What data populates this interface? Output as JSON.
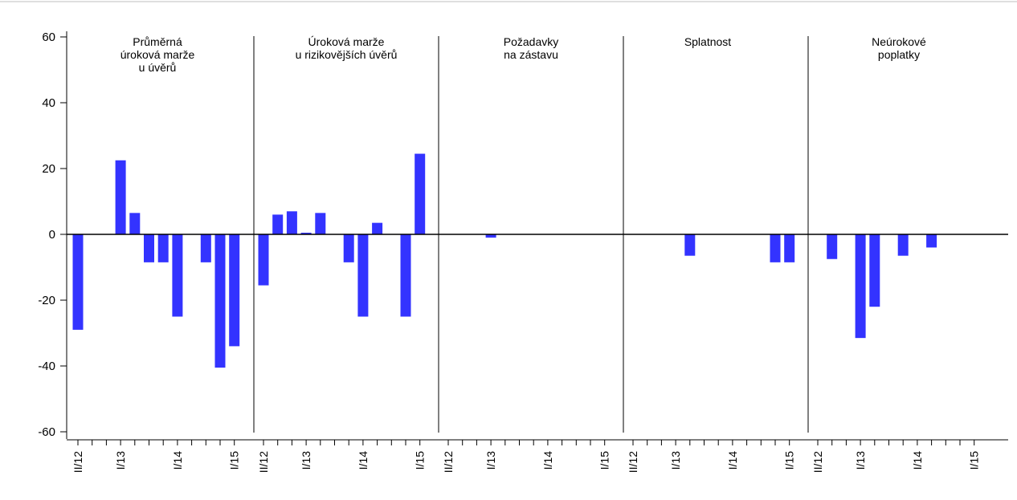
{
  "chart_data": {
    "type": "bar",
    "title": "",
    "ylim": [
      -60,
      60
    ],
    "yticks": [
      60,
      40,
      20,
      0,
      -20,
      -40,
      -60
    ],
    "ytick_labels": [
      "60",
      "40",
      "20",
      "0",
      "-20",
      "-40",
      "-60"
    ],
    "bar_color": "#3333ff",
    "x_tick_labels": [
      "II/12",
      "I/13",
      "I/14",
      "I/15"
    ],
    "panels": [
      {
        "title_lines": [
          "Průměrná",
          "úroková marže",
          "u úvěrů"
        ],
        "values": [
          -29,
          0,
          0,
          22.5,
          6.5,
          -8.5,
          -8.5,
          -25,
          0,
          -8.5,
          -40.5,
          -34
        ]
      },
      {
        "title_lines": [
          "Úroková marže",
          "u rizikovějších úvěrů"
        ],
        "values": [
          -15.5,
          6,
          7,
          0.5,
          6.5,
          0,
          -8.5,
          -25,
          3.5,
          0,
          -25,
          24.5
        ]
      },
      {
        "title_lines": [
          "Požadavky",
          "na zástavu"
        ],
        "values": [
          0,
          0,
          0,
          -1,
          0,
          0,
          0,
          0,
          0,
          0,
          0,
          0
        ]
      },
      {
        "title_lines": [
          "Splatnost"
        ],
        "values": [
          0,
          0,
          0,
          0,
          -6.5,
          0,
          0,
          0,
          0,
          0,
          -8.5,
          -8.5
        ]
      },
      {
        "title_lines": [
          "Neúrokové",
          "poplatky"
        ],
        "values": [
          0,
          -7.5,
          0,
          -31.5,
          -22,
          0,
          -6.5,
          0,
          -4,
          0,
          0,
          0
        ]
      }
    ]
  }
}
